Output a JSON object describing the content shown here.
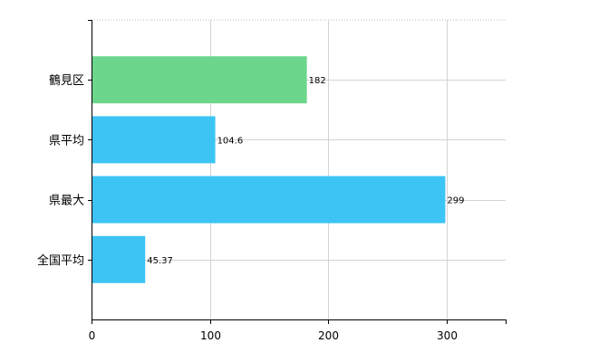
{
  "chart_data": {
    "type": "bar",
    "orientation": "horizontal",
    "categories": [
      "鶴見区",
      "県平均",
      "県最大",
      "全国平均"
    ],
    "values": [
      182,
      104.6,
      299,
      45.37
    ],
    "value_labels": [
      "182",
      "104.6",
      "299",
      "45.37"
    ],
    "colors": [
      "#6cd68c",
      "#3cc4f5",
      "#3cc4f5",
      "#3cc4f5"
    ],
    "xlim": [
      0,
      350
    ],
    "xticks": [
      0,
      100,
      200,
      300
    ],
    "xtick_labels": [
      "0",
      "100",
      "200",
      "300"
    ],
    "grid": true,
    "legend": "none",
    "title": "",
    "xlabel": "",
    "ylabel": ""
  }
}
